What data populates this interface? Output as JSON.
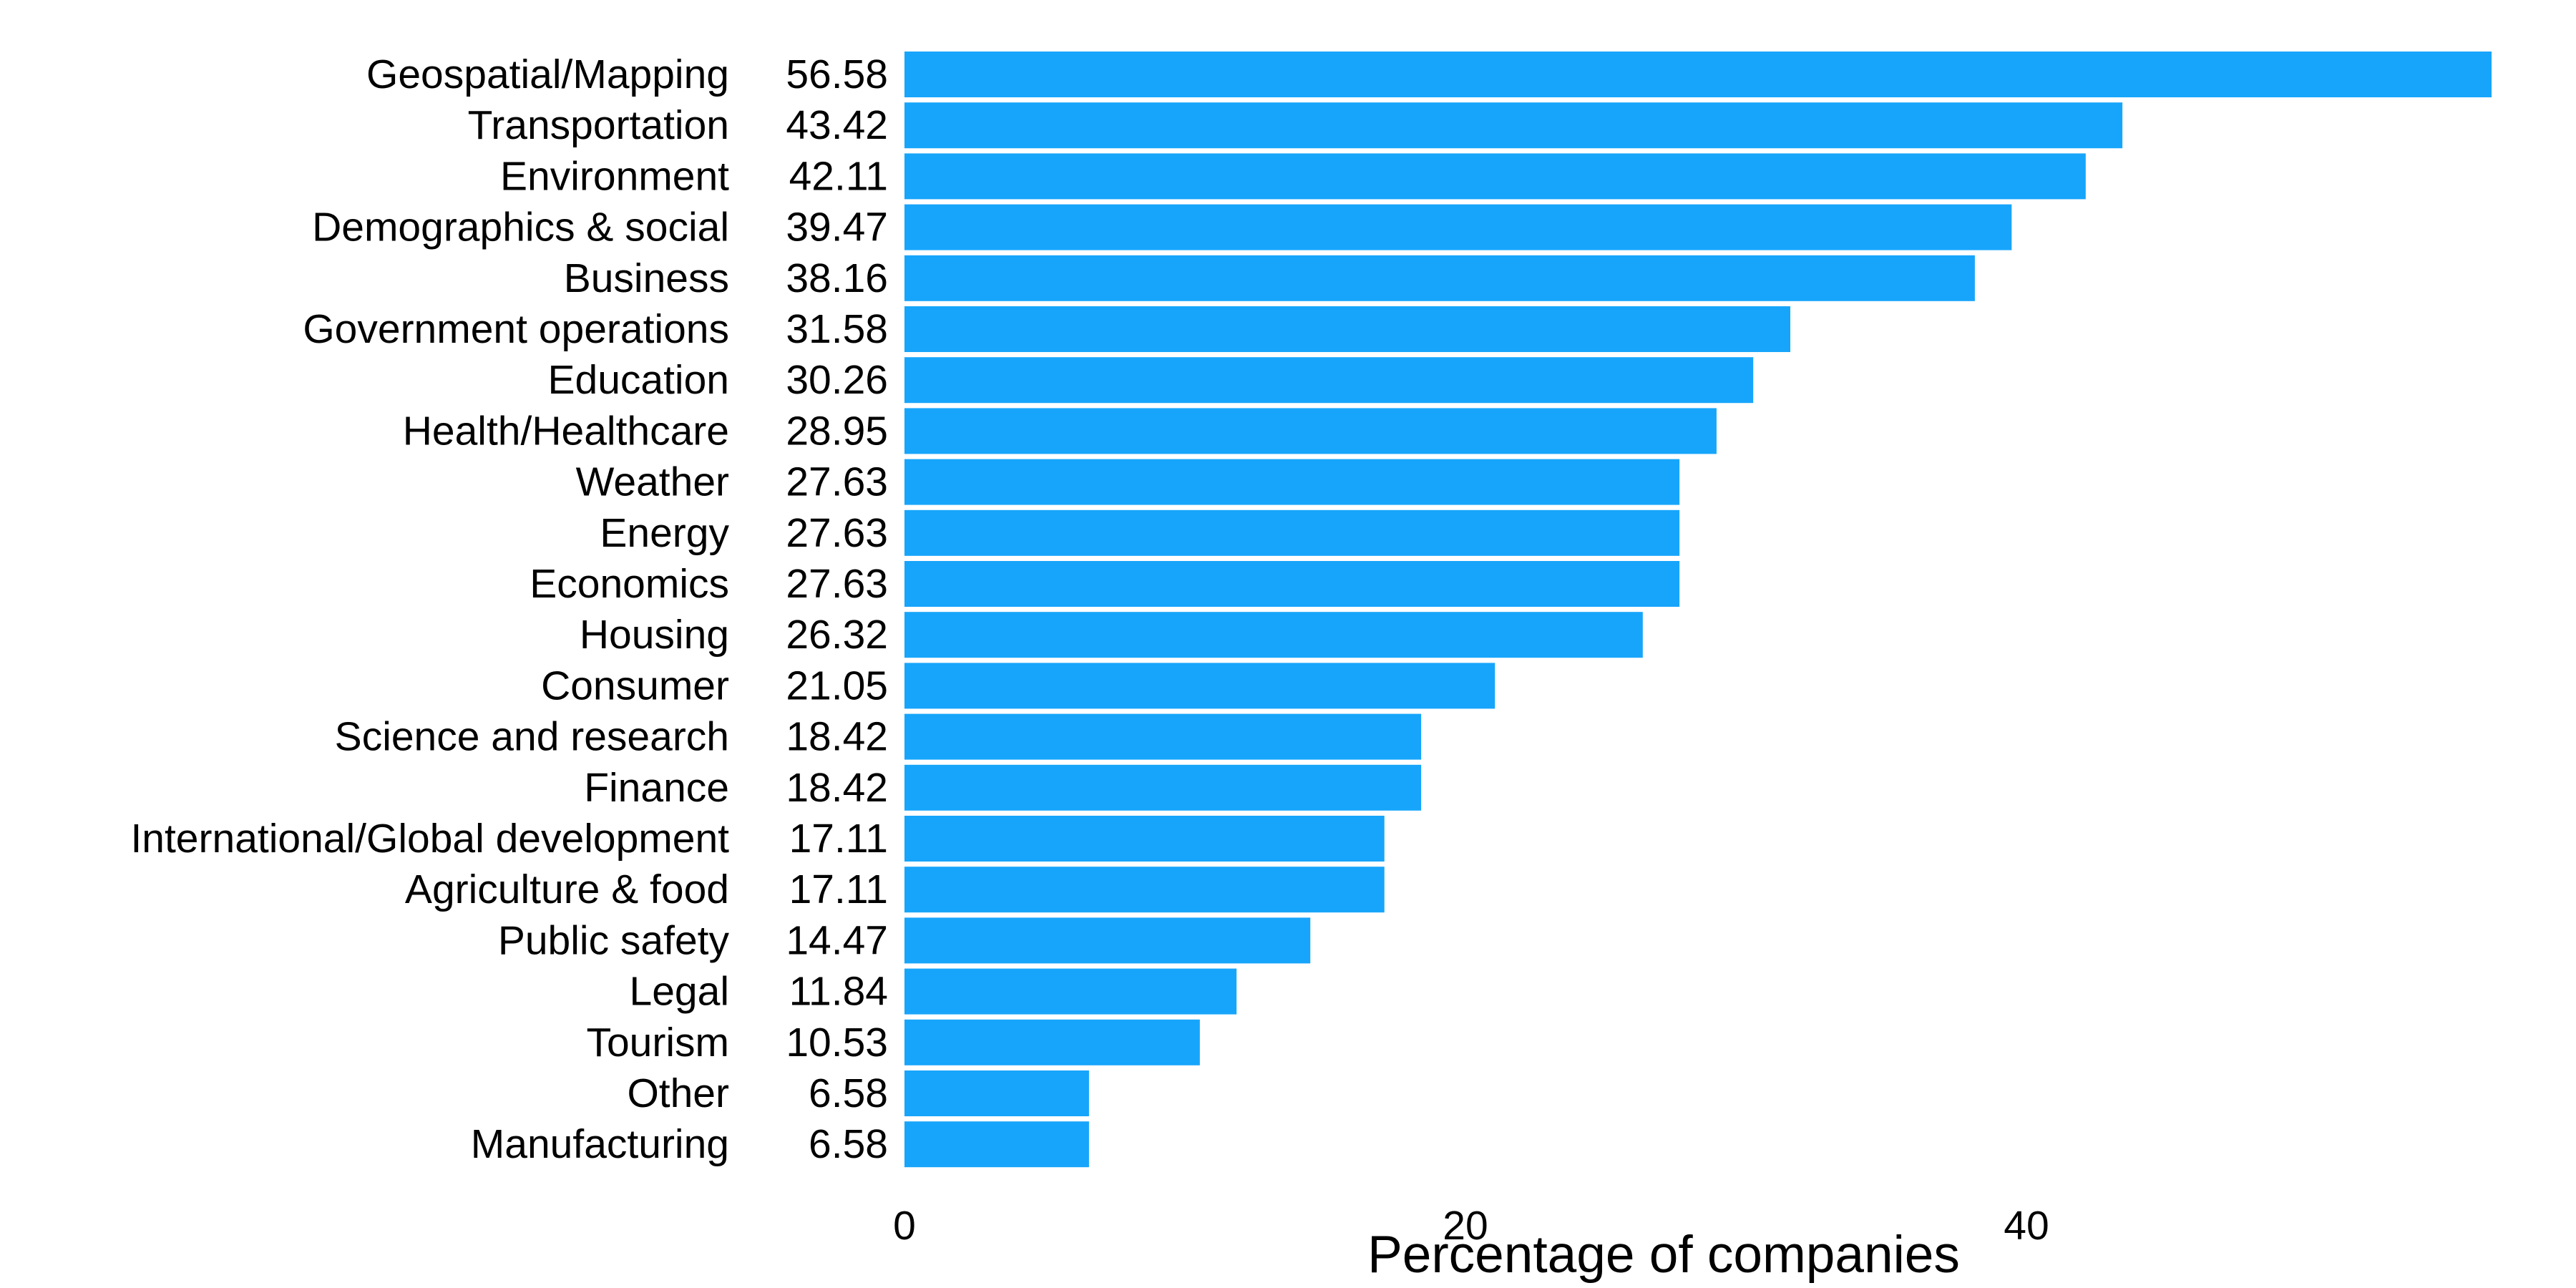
{
  "chart_data": {
    "type": "bar",
    "orientation": "horizontal",
    "categories": [
      "Geospatial/Mapping",
      "Transportation",
      "Environment",
      "Demographics & social",
      "Business",
      "Government operations",
      "Education",
      "Health/Healthcare",
      "Weather",
      "Energy",
      "Economics",
      "Housing",
      "Consumer",
      "Science and research",
      "Finance",
      "International/Global development",
      "Agriculture & food",
      "Public safety",
      "Legal",
      "Tourism",
      "Other",
      "Manufacturing"
    ],
    "values": [
      56.58,
      43.42,
      42.11,
      39.47,
      38.16,
      31.58,
      30.26,
      28.95,
      27.63,
      27.63,
      27.63,
      26.32,
      21.05,
      18.42,
      18.42,
      17.11,
      17.11,
      14.47,
      11.84,
      10.53,
      6.58,
      6.58
    ],
    "value_labels": [
      "56.58",
      "43.42",
      "42.11",
      "39.47",
      "38.16",
      "31.58",
      "30.26",
      "28.95",
      "27.63",
      "27.63",
      "27.63",
      "26.32",
      "21.05",
      "18.42",
      "18.42",
      "17.11",
      "17.11",
      "14.47",
      "11.84",
      "10.53",
      "6.58",
      "6.58"
    ],
    "xticks": [
      0,
      20,
      40
    ],
    "xtick_labels": [
      "0",
      "20",
      "40"
    ],
    "xlabel": "Percentage of companies",
    "ylabel": "",
    "title": "",
    "xlim": [
      0,
      56.58
    ],
    "bar_color": "#17a5fb",
    "grid": false,
    "legend": "none"
  }
}
